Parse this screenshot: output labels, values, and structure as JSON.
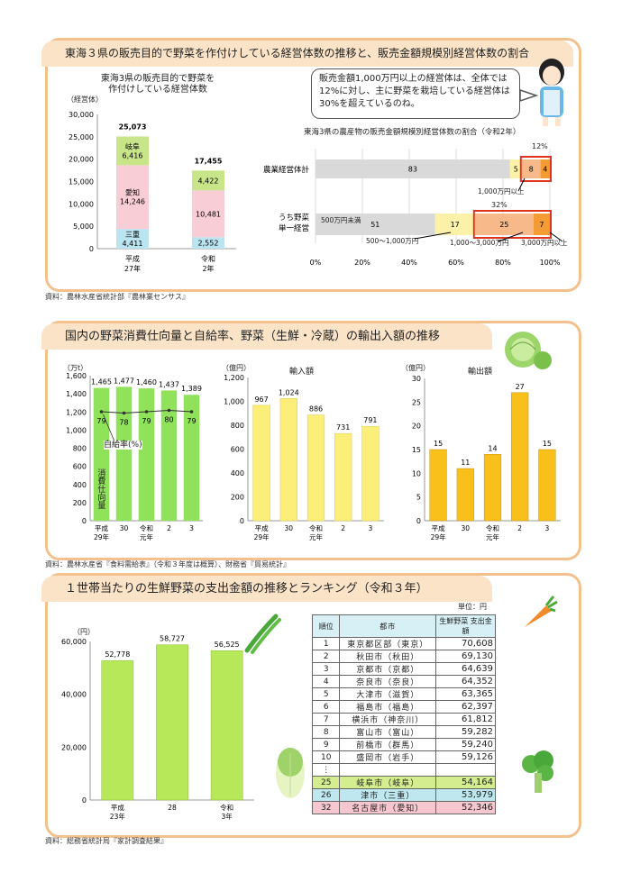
{
  "section1": {
    "title": "東海３県の販売目的で野菜を作付けしている経営体数の推移と、販売金額規模別経営体数の割合",
    "source": "資料：農林水産省統計部『農林業センサス』",
    "speech": "販売金額1,000万円以上の経営体は、全体では12%に対し、主に野菜を栽培している経営体は30%を超えているのね。",
    "chart_a_title": "東海3県の販売目的で野菜を作付けしている経営体数",
    "chart_a_unit": "（経営体）",
    "chart_b_title": "東海3県の農産物の販売金額規模別経営体数の割合（令和2年）",
    "annotations": {
      "pct12": "12%",
      "pct32": "32%",
      "over1000": "1,000万円以上",
      "under500": "500万円未満",
      "r500_1000": "500～1,000万円",
      "r1000_3000": "1,000～3,000万円",
      "over3000": "3,000万円以上"
    }
  },
  "section2": {
    "title": "国内の野菜消費仕向量と自給率、野菜（生鮮・冷蔵）の輸出入額の推移",
    "source": "資料：農林水産省『食料需給表』（令和３年度は概算）、財務省『貿易統計』",
    "unit_consumption": "（万t）",
    "unit_yen": "（億円）",
    "unit_yen2": "（億円）",
    "import_title": "輸入額",
    "export_title": "輸出額",
    "self_rate_label": "自給率(%)",
    "consumption_label": "消費仕向量"
  },
  "section3": {
    "title": "１世帯当たりの生鮮野菜の支出金額の推移とランキング（令和３年）",
    "source": "資料：総務省統計局『家計調査結果』",
    "unit_en": "（円）",
    "table_unit": "単位：円",
    "table_headers": {
      "rank": "順位",
      "city": "都市",
      "amount": "生鮮野菜 支出金額"
    },
    "ellipsis": "⋮",
    "ranking": [
      {
        "rank": "1",
        "city": "東京都区部（東京）",
        "amount": "70,608",
        "hl": ""
      },
      {
        "rank": "2",
        "city": "秋田市（秋田）",
        "amount": "69,130",
        "hl": ""
      },
      {
        "rank": "3",
        "city": "京都市（京都）",
        "amount": "64,639",
        "hl": ""
      },
      {
        "rank": "4",
        "city": "奈良市（奈良）",
        "amount": "64,352",
        "hl": ""
      },
      {
        "rank": "5",
        "city": "大津市（滋賀）",
        "amount": "63,365",
        "hl": ""
      },
      {
        "rank": "6",
        "city": "福島市（福島）",
        "amount": "62,397",
        "hl": ""
      },
      {
        "rank": "7",
        "city": "横浜市（神奈川）",
        "amount": "61,812",
        "hl": ""
      },
      {
        "rank": "8",
        "city": "富山市（富山）",
        "amount": "59,282",
        "hl": ""
      },
      {
        "rank": "9",
        "city": "前橋市（群馬）",
        "amount": "59,240",
        "hl": ""
      },
      {
        "rank": "10",
        "city": "盛岡市（岩手）",
        "amount": "59,126",
        "hl": ""
      },
      {
        "rank": "25",
        "city": "岐阜市（岐阜）",
        "amount": "54,164",
        "hl": "#d4ed8e"
      },
      {
        "rank": "26",
        "city": "津市（三重）",
        "amount": "53,979",
        "hl": "#bfe7f0"
      },
      {
        "rank": "32",
        "city": "名古屋市（愛知）",
        "amount": "52,346",
        "hl": "#f7c7cf"
      }
    ]
  },
  "chart_data": [
    {
      "type": "bar",
      "stacked": true,
      "title": "東海3県の販売目的で野菜を作付けしている経営体数",
      "ylabel": "（経営体）",
      "categories": [
        "平成27年",
        "令和2年"
      ],
      "ylim": [
        0,
        30000
      ],
      "yticks": [
        "0",
        "5,000",
        "10,000",
        "15,000",
        "20,000",
        "25,000",
        "30,000"
      ],
      "series": [
        {
          "name": "三重",
          "values": [
            4411,
            2552
          ],
          "labels": [
            "4,411",
            "2,552"
          ],
          "color": "#b9e4f0"
        },
        {
          "name": "愛知",
          "values": [
            14246,
            10481
          ],
          "labels": [
            "14,246",
            "10,481"
          ],
          "color": "#f9cdd5"
        },
        {
          "name": "岐阜",
          "values": [
            6416,
            4422
          ],
          "labels": [
            "6,416",
            "4,422"
          ],
          "color": "#c9e58a"
        }
      ],
      "totals": [
        "25,073",
        "17,455"
      ]
    },
    {
      "type": "bar",
      "stacked": true,
      "horizontal": true,
      "title": "東海3県の農産物の販売金額規模別経営体数の割合（令和2年）",
      "categories": [
        "農業経営体計",
        "うち野菜 単一経営"
      ],
      "xlim": [
        0,
        100
      ],
      "xticks": [
        "0%",
        "20%",
        "40%",
        "60%",
        "80%",
        "100%"
      ],
      "series": [
        {
          "name": "500万円未満",
          "values": [
            83,
            51
          ],
          "color": "#d9d9d9"
        },
        {
          "name": "500～1,000万円",
          "values": [
            5,
            17
          ],
          "color": "#fbf1a8"
        },
        {
          "name": "1,000～3,000万円",
          "values": [
            8,
            25
          ],
          "color": "#f7b98a"
        },
        {
          "name": "3,000万円以上",
          "values": [
            4,
            7
          ],
          "color": "#f39c33"
        }
      ]
    },
    {
      "type": "bar",
      "title": "",
      "ylabel": "（万t）",
      "categories": [
        "平成29年",
        "30",
        "令和元年",
        "2",
        "3"
      ],
      "values": [
        1465,
        1477,
        1460,
        1437,
        1389
      ],
      "labels": [
        "1,465",
        "1,477",
        "1,460",
        "1,437",
        "1,389"
      ],
      "ylim": [
        0,
        1600
      ],
      "yticks": [
        "0",
        "200",
        "400",
        "600",
        "800",
        "1,000",
        "1,200",
        "1,400",
        "1,600"
      ],
      "line": {
        "name": "自給率(%)",
        "values": [
          79,
          78,
          79,
          80,
          79
        ],
        "color": "#333333"
      },
      "color": "#8fe25a"
    },
    {
      "type": "bar",
      "title": "輸入額",
      "ylabel": "（億円）",
      "categories": [
        "平成29年",
        "30",
        "令和元年",
        "2",
        "3"
      ],
      "values": [
        967,
        1024,
        886,
        731,
        791
      ],
      "labels": [
        "967",
        "1,024",
        "886",
        "731",
        "791"
      ],
      "ylim": [
        0,
        1200
      ],
      "yticks": [
        "0",
        "200",
        "400",
        "600",
        "800",
        "1,000",
        "1,200"
      ],
      "color": "#fbef7a"
    },
    {
      "type": "bar",
      "title": "輸出額",
      "ylabel": "（億円）",
      "categories": [
        "平成29年",
        "30",
        "令和元年",
        "2",
        "3"
      ],
      "values": [
        15,
        11,
        14,
        27,
        15
      ],
      "labels": [
        "15",
        "11",
        "14",
        "27",
        "15"
      ],
      "ylim": [
        0,
        30
      ],
      "yticks": [
        "0",
        "5",
        "10",
        "15",
        "20",
        "25",
        "30"
      ],
      "color": "#f9bf1a"
    },
    {
      "type": "bar",
      "title": "",
      "ylabel": "（円）",
      "categories": [
        "平成23年",
        "28",
        "令和3年"
      ],
      "values": [
        52778,
        58727,
        56525
      ],
      "labels": [
        "52,778",
        "58,727",
        "56,525"
      ],
      "ylim": [
        0,
        60000
      ],
      "yticks": [
        "0",
        "20,000",
        "40,000",
        "60,000"
      ],
      "color": "#b7e85a"
    }
  ]
}
